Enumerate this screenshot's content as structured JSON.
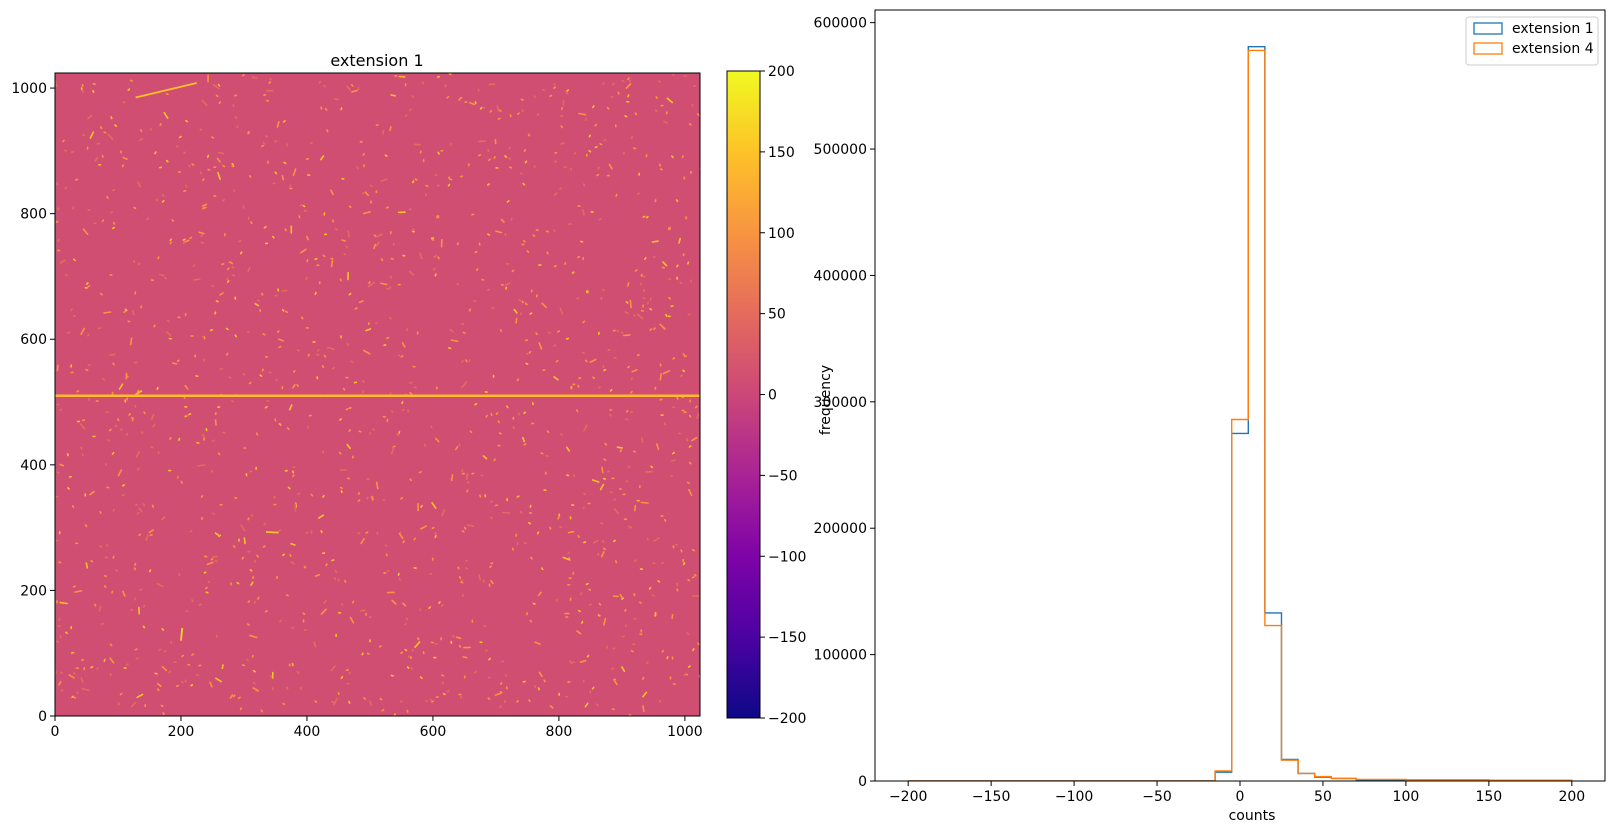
{
  "chart_data": [
    {
      "type": "heatmap",
      "title": "extension 1",
      "xlabel": "",
      "ylabel": "",
      "xlim": [
        0,
        1024
      ],
      "ylim": [
        0,
        1024
      ],
      "xticks": [
        0,
        200,
        400,
        600,
        800,
        1000
      ],
      "yticks": [
        0,
        200,
        400,
        600,
        800,
        1000
      ],
      "background_value": 10,
      "features": [
        {
          "kind": "horizontal-streak",
          "y": 510,
          "x_range": [
            0,
            1024
          ],
          "value": 140
        },
        {
          "kind": "streak",
          "from": [
            128,
            985
          ],
          "to": [
            225,
            1008
          ],
          "value": 150
        },
        {
          "kind": "streak",
          "from": [
            200,
            120
          ],
          "to": [
            202,
            140
          ],
          "value": 170
        },
        {
          "kind": "streak",
          "from": [
            335,
            293
          ],
          "to": [
            355,
            292
          ],
          "value": 150
        },
        {
          "kind": "streak",
          "from": [
            128,
            512
          ],
          "to": [
            138,
            518
          ],
          "value": 150
        }
      ],
      "colorbar": {
        "cmap": "plasma",
        "range": [
          -200,
          200
        ],
        "ticks": [
          -200,
          -150,
          -100,
          -50,
          0,
          50,
          100,
          150,
          200
        ],
        "tick_labels": [
          "−200",
          "−150",
          "−100",
          "−50",
          "0",
          "50",
          "100",
          "150",
          "200"
        ]
      }
    },
    {
      "type": "histogram",
      "title": "",
      "xlabel": "counts",
      "ylabel": "frequency",
      "xlim": [
        -220,
        220
      ],
      "ylim": [
        0,
        610000
      ],
      "xticks": [
        -200,
        -150,
        -100,
        -50,
        0,
        50,
        100,
        150,
        200
      ],
      "xtick_labels": [
        "−200",
        "−150",
        "−100",
        "−50",
        "0",
        "50",
        "100",
        "150",
        "200"
      ],
      "yticks": [
        0,
        100000,
        200000,
        300000,
        400000,
        500000,
        600000
      ],
      "bin_edges": [
        -200,
        -190,
        -180,
        -170,
        -160,
        -150,
        -140,
        -130,
        -120,
        -110,
        -100,
        -90,
        -80,
        -70,
        -60,
        -50,
        -40,
        -30,
        -20,
        -15,
        -5,
        5,
        15,
        25,
        35,
        45,
        55,
        70,
        100,
        150,
        200
      ],
      "series": [
        {
          "name": "extension 1",
          "color": "#1f77b4",
          "counts": [
            0,
            0,
            0,
            0,
            0,
            0,
            0,
            0,
            0,
            0,
            0,
            0,
            0,
            0,
            0,
            0,
            0,
            0,
            0,
            7000,
            275000,
            581000,
            133000,
            17000,
            6000,
            3000,
            2000,
            1000,
            800,
            500
          ]
        },
        {
          "name": "extension 4",
          "color": "#ff7f0e",
          "counts": [
            0,
            0,
            0,
            0,
            0,
            0,
            0,
            0,
            0,
            0,
            0,
            0,
            0,
            0,
            0,
            0,
            0,
            0,
            0,
            8000,
            286000,
            578000,
            123000,
            16500,
            6000,
            3500,
            2000,
            1200,
            800,
            500
          ]
        }
      ],
      "legend": "upper-right"
    }
  ]
}
